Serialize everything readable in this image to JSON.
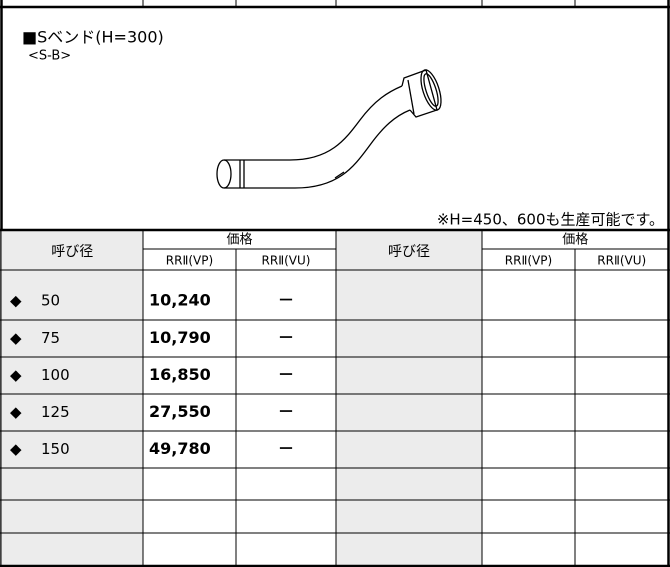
{
  "section": {
    "title": "■Sベンド(H=300)",
    "code": "<S-B>",
    "note": "※H=450、600も生産可能です。"
  },
  "table": {
    "header_left": {
      "size": "呼び径",
      "price": "価格",
      "vp": "RRⅡ(VP)",
      "vu": "RRⅡ(VU)"
    },
    "header_right": {
      "size": "呼び径",
      "price": "価格",
      "vp": "RRⅡ(VP)",
      "vu": "RRⅡ(VU)"
    },
    "rows": [
      {
        "mark": "◆",
        "size": "50",
        "vp": "10,240",
        "vu": "－"
      },
      {
        "mark": "◆",
        "size": "75",
        "vp": "10,790",
        "vu": "－"
      },
      {
        "mark": "◆",
        "size": "100",
        "vp": "16,850",
        "vu": "－"
      },
      {
        "mark": "◆",
        "size": "125",
        "vp": "27,550",
        "vu": "－"
      },
      {
        "mark": "◆",
        "size": "150",
        "vp": "49,780",
        "vu": "－"
      }
    ]
  }
}
